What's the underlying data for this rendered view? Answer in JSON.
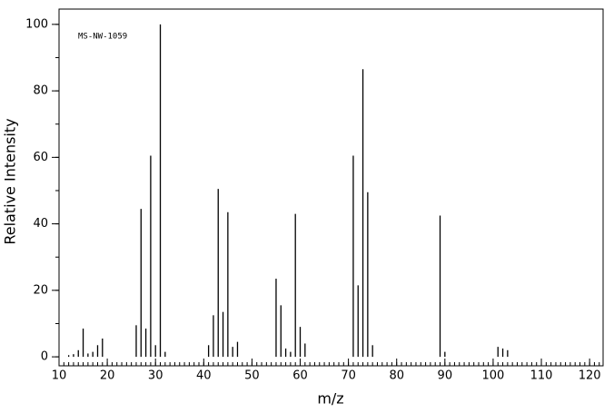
{
  "chart_data": {
    "type": "stem",
    "annotation": "MS-NW-1059",
    "x_label": "m/z",
    "y_label": "Relative Intensity",
    "x": [
      12,
      13,
      14,
      15,
      16,
      17,
      18,
      19,
      26,
      27,
      28,
      29,
      30,
      31,
      32,
      41,
      42,
      43,
      44,
      45,
      46,
      47,
      55,
      56,
      57,
      58,
      59,
      60,
      61,
      71,
      72,
      73,
      74,
      75,
      89,
      90,
      101,
      102,
      103
    ],
    "values": [
      0.5,
      0.8,
      2,
      8.5,
      1,
      1.5,
      3.5,
      5.5,
      9.5,
      44.5,
      8.5,
      60.5,
      3.5,
      100,
      1.5,
      3.5,
      12.5,
      50.5,
      13.5,
      43.5,
      3,
      4.5,
      23.5,
      15.5,
      2.5,
      1.5,
      43,
      9,
      4,
      60.5,
      21.5,
      86.5,
      49.5,
      3.5,
      42.5,
      1.5,
      3,
      2.5,
      2
    ],
    "color": "#000000",
    "xlim": [
      10,
      122.8
    ],
    "ylim": [
      -2.7,
      104.6
    ],
    "xticks": [
      10,
      20,
      30,
      40,
      50,
      60,
      70,
      80,
      90,
      100,
      110,
      120
    ],
    "yticks": [
      0,
      20,
      40,
      60,
      80,
      100
    ],
    "xminor": 1,
    "yminor": 10
  }
}
